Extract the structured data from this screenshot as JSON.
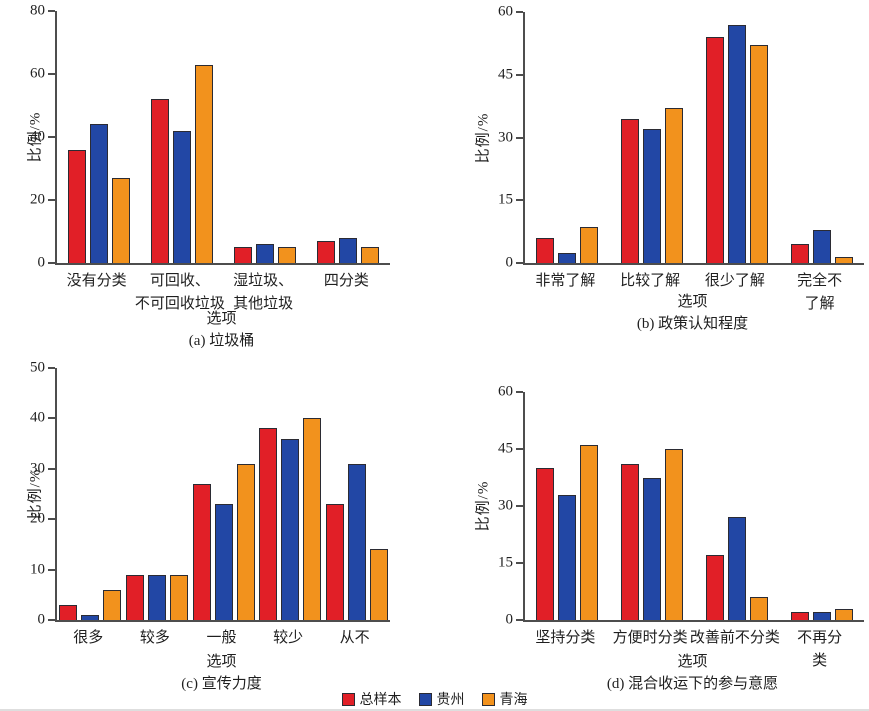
{
  "figure": {
    "ylabel": "比例/%",
    "xlabel": "选项"
  },
  "legend": {
    "items": [
      {
        "label": "总样本",
        "color": "#e11f27"
      },
      {
        "label": "贵州",
        "color": "#2247a5"
      },
      {
        "label": "青海",
        "color": "#f2921d"
      }
    ]
  },
  "chart_data": [
    {
      "type": "bar",
      "title": "(a) 垃圾桶",
      "xlabel": "选项",
      "ylabel": "比例/%",
      "ylim": [
        0,
        80
      ],
      "yticks": [
        0,
        20,
        40,
        60,
        80
      ],
      "categories": [
        "没有分类",
        "可回收、\n不可回收垃圾",
        "湿垃圾、\n其他垃圾",
        "四分类"
      ],
      "series": [
        {
          "name": "总样本",
          "values": [
            36,
            52,
            5,
            7
          ]
        },
        {
          "name": "贵州",
          "values": [
            44,
            42,
            6,
            8
          ]
        },
        {
          "name": "青海",
          "values": [
            27,
            63,
            5,
            5
          ]
        }
      ],
      "legend_position": "bottom-shared",
      "grid": false
    },
    {
      "type": "bar",
      "title": "(b) 政策认知程度",
      "xlabel": "选项",
      "ylabel": "比例/%",
      "ylim": [
        0,
        60
      ],
      "yticks": [
        0,
        15,
        30,
        45,
        60
      ],
      "categories": [
        "非常了解",
        "比较了解",
        "很少了解",
        "完全不了解"
      ],
      "series": [
        {
          "name": "总样本",
          "values": [
            6,
            34.5,
            54,
            4.5
          ]
        },
        {
          "name": "贵州",
          "values": [
            2.5,
            32,
            57,
            8
          ]
        },
        {
          "name": "青海",
          "values": [
            8.5,
            37,
            52,
            1.5
          ]
        }
      ],
      "legend_position": "bottom-shared",
      "grid": false
    },
    {
      "type": "bar",
      "title": "(c) 宣传力度",
      "xlabel": "选项",
      "ylabel": "比例/%",
      "ylim": [
        0,
        50
      ],
      "yticks": [
        0,
        10,
        20,
        30,
        40,
        50
      ],
      "categories": [
        "很多",
        "较多",
        "一般",
        "较少",
        "从不"
      ],
      "series": [
        {
          "name": "总样本",
          "values": [
            3,
            9,
            27,
            38,
            23
          ]
        },
        {
          "name": "贵州",
          "values": [
            1,
            9,
            23,
            36,
            31
          ]
        },
        {
          "name": "青海",
          "values": [
            6,
            9,
            31,
            40,
            14
          ]
        }
      ],
      "legend_position": "bottom-shared",
      "grid": false
    },
    {
      "type": "bar",
      "title": "(d) 混合收运下的参与意愿",
      "xlabel": "选项",
      "ylabel": "比例/%",
      "ylim": [
        0,
        60
      ],
      "yticks": [
        0,
        15,
        30,
        45,
        60
      ],
      "categories": [
        "坚持分类",
        "方便时分类",
        "改善前不分类",
        "不再分类"
      ],
      "series": [
        {
          "name": "总样本",
          "values": [
            40,
            41,
            17,
            2
          ]
        },
        {
          "name": "贵州",
          "values": [
            33,
            37.5,
            27,
            2
          ]
        },
        {
          "name": "青海",
          "values": [
            46,
            45,
            6,
            3
          ]
        }
      ],
      "legend_position": "bottom-shared",
      "grid": false
    }
  ]
}
